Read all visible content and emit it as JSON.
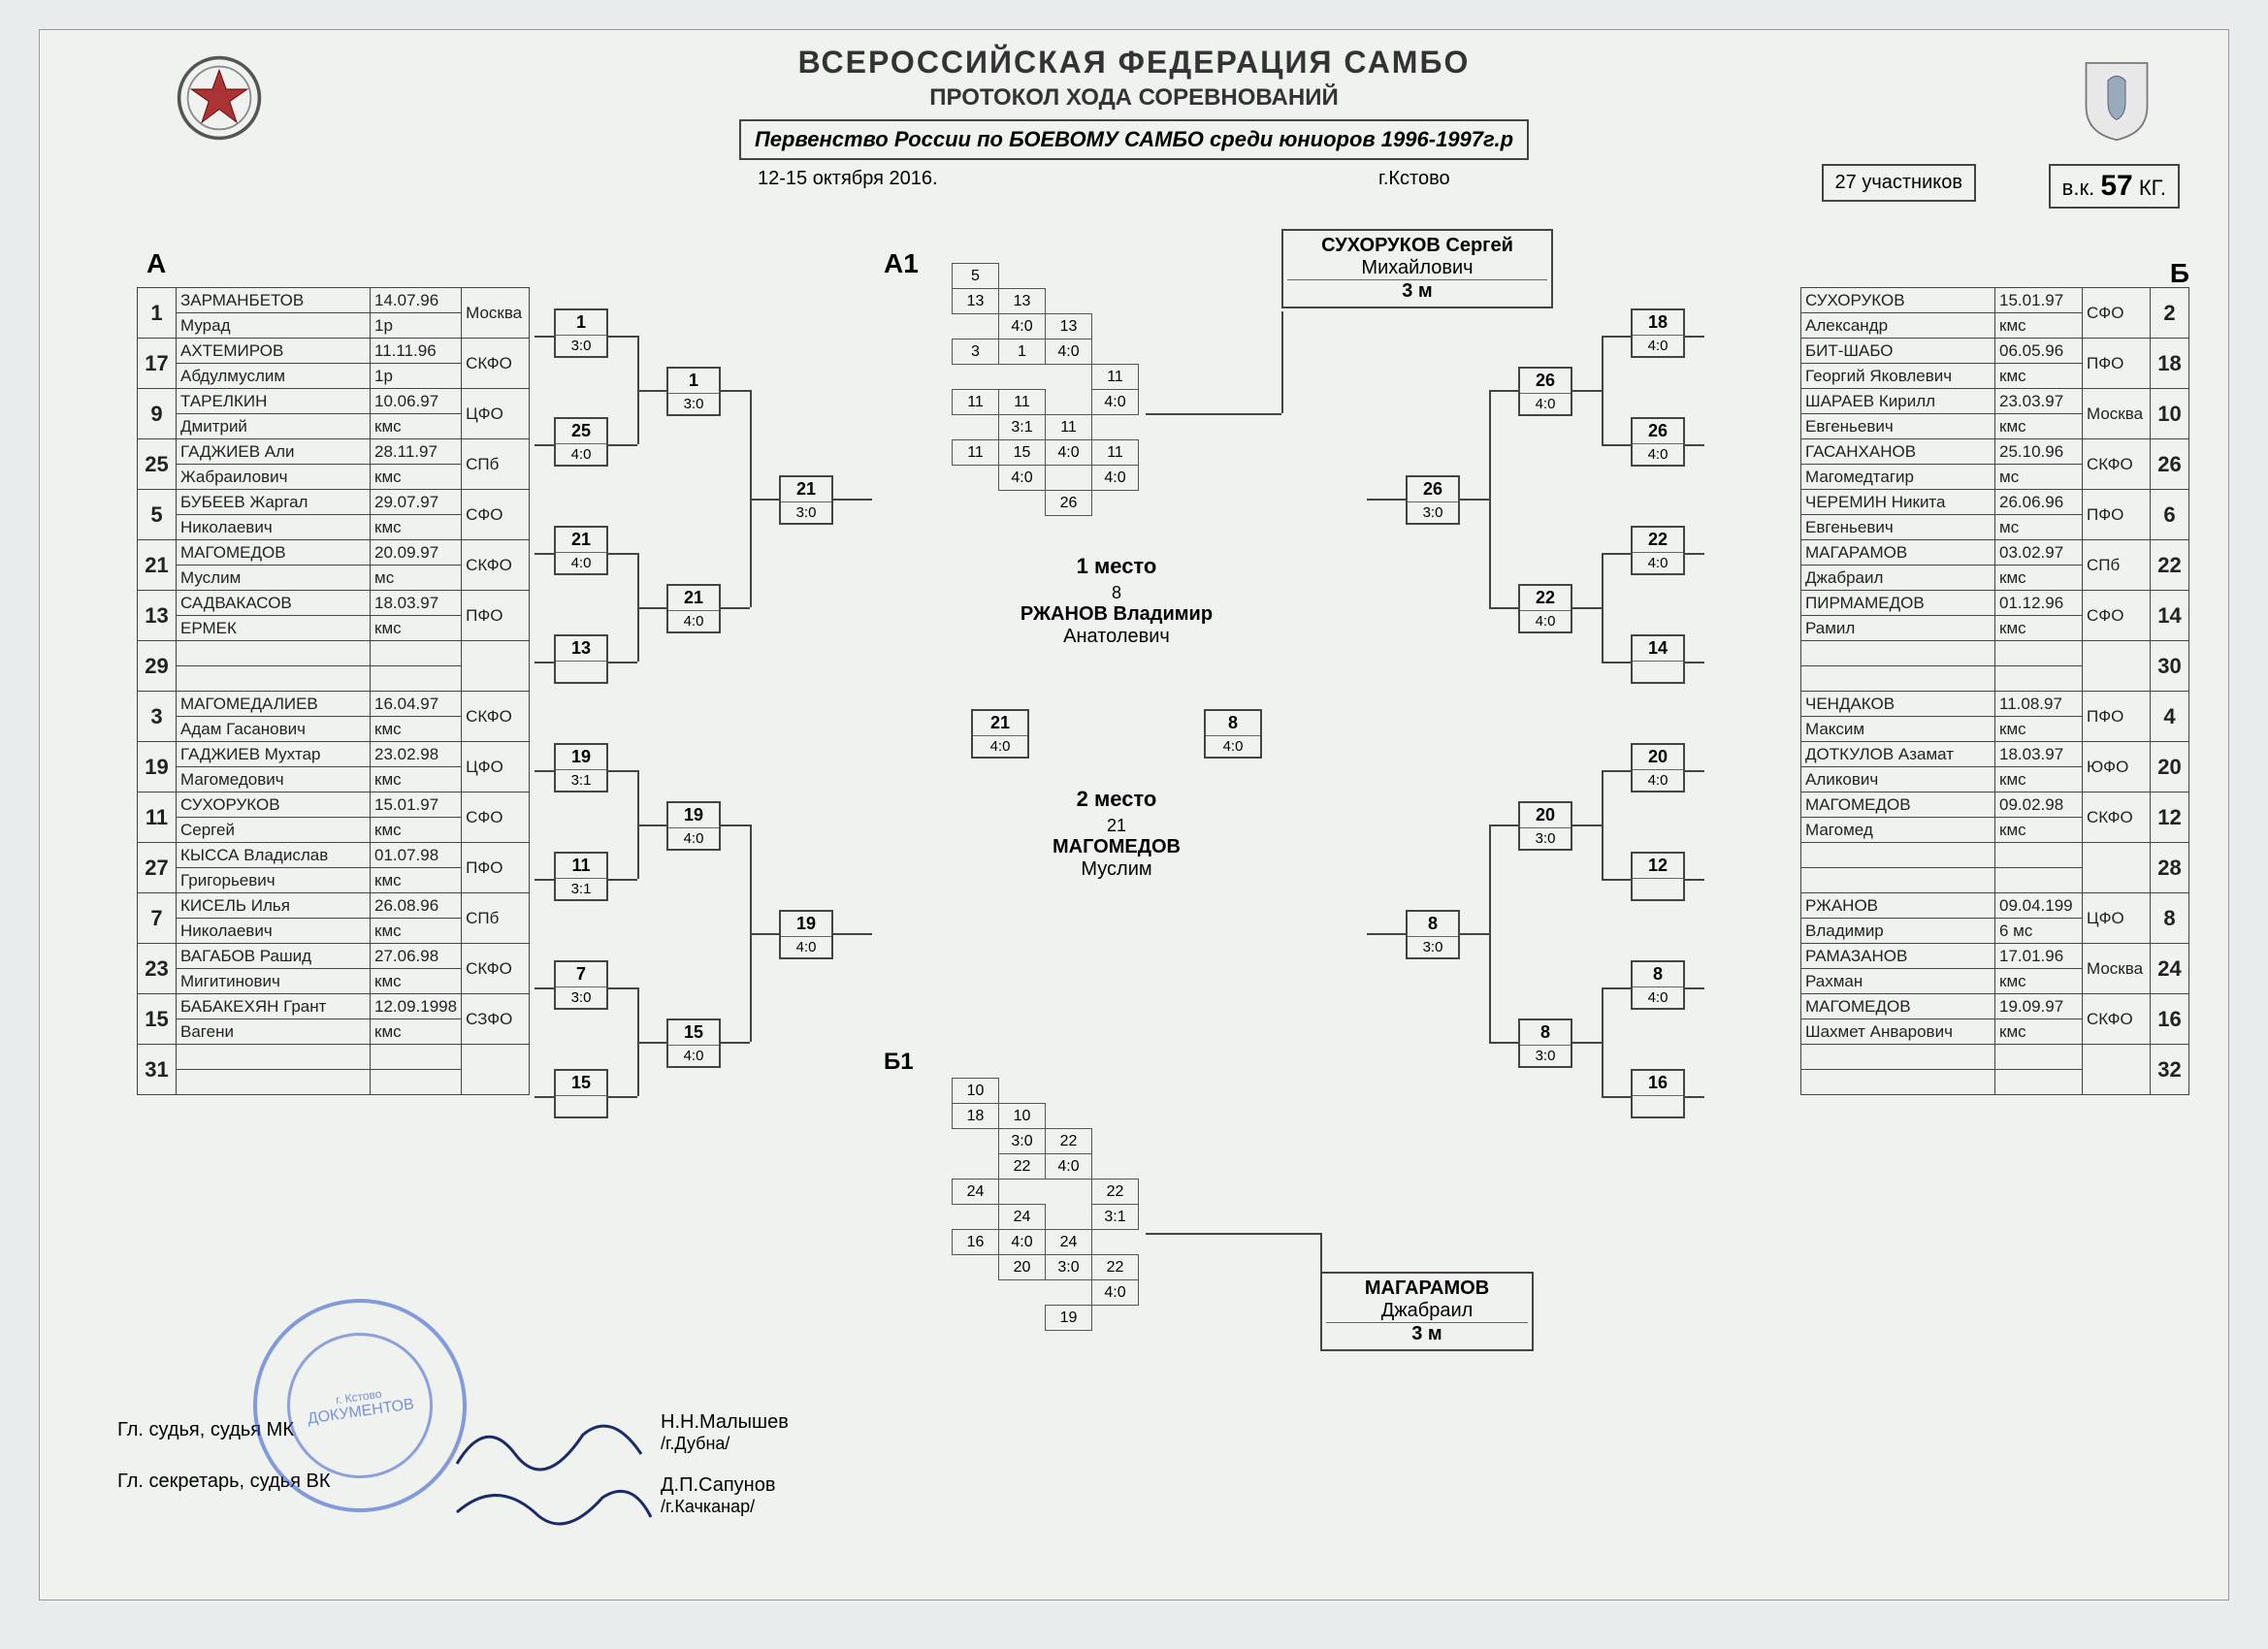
{
  "header": {
    "org": "ВСЕРОССИЙСКАЯ ФЕДЕРАЦИЯ САМБО",
    "title": "ПРОТОКОЛ ХОДА СОРЕВНОВАНИЙ",
    "event": "Первенство России по БОЕВОМУ САМБО среди юниоров 1996-1997г.р",
    "dates": "12-15 октября 2016.",
    "city": "г.Кстово",
    "participants_label": "27 участников",
    "weight_label": "в.к.",
    "weight_value": "57",
    "weight_unit": "КГ."
  },
  "labels": {
    "A": "А",
    "A1": "А1",
    "B": "Б",
    "B1": "Б1"
  },
  "groupA": [
    {
      "num": "1",
      "name1": "ЗАРМАНБЕТОВ",
      "name2": "Мурад",
      "d": "14.07.96",
      "r": "1р",
      "reg": "Москва"
    },
    {
      "num": "17",
      "name1": "АХТЕМИРОВ",
      "name2": "Абдулмуслим",
      "d": "11.11.96",
      "r": "1р",
      "reg": "СКФО"
    },
    {
      "num": "9",
      "name1": "ТАРЕЛКИН",
      "name2": "Дмитрий",
      "d": "10.06.97",
      "r": "кмс",
      "reg": "ЦФО"
    },
    {
      "num": "25",
      "name1": "ГАДЖИЕВ Али",
      "name2": "Жабраилович",
      "d": "28.11.97",
      "r": "кмс",
      "reg": "СПб"
    },
    {
      "num": "5",
      "name1": "БУБЕЕВ Жаргал",
      "name2": "Николаевич",
      "d": "29.07.97",
      "r": "кмс",
      "reg": "СФО"
    },
    {
      "num": "21",
      "name1": "МАГОМЕДОВ",
      "name2": "Муслим",
      "d": "20.09.97",
      "r": "мс",
      "reg": "СКФО"
    },
    {
      "num": "13",
      "name1": "САДВАКАСОВ",
      "name2": "ЕРМЕК",
      "d": "18.03.97",
      "r": "кмс",
      "reg": "ПФО"
    },
    {
      "num": "29",
      "name1": "",
      "name2": "",
      "d": "",
      "r": "",
      "reg": ""
    },
    {
      "num": "3",
      "name1": "МАГОМЕДАЛИЕВ",
      "name2": "Адам Гасанович",
      "d": "16.04.97",
      "r": "кмс",
      "reg": "СКФО"
    },
    {
      "num": "19",
      "name1": "ГАДЖИЕВ Мухтар",
      "name2": "Магомедович",
      "d": "23.02.98",
      "r": "кмс",
      "reg": "ЦФО"
    },
    {
      "num": "11",
      "name1": "СУХОРУКОВ",
      "name2": "Сергей",
      "d": "15.01.97",
      "r": "кмс",
      "reg": "СФО"
    },
    {
      "num": "27",
      "name1": "КЫССА Владислав",
      "name2": "Григорьевич",
      "d": "01.07.98",
      "r": "кмс",
      "reg": "ПФО"
    },
    {
      "num": "7",
      "name1": "КИСЕЛЬ Илья",
      "name2": "Николаевич",
      "d": "26.08.96",
      "r": "кмс",
      "reg": "СПб"
    },
    {
      "num": "23",
      "name1": "ВАГАБОВ Рашид",
      "name2": "Мигитинович",
      "d": "27.06.98",
      "r": "кмс",
      "reg": "СКФО"
    },
    {
      "num": "15",
      "name1": "БАБАКЕХЯН Грант",
      "name2": "Вагени",
      "d": "12.09.1998",
      "r": "кмс",
      "reg": "СЗФО"
    },
    {
      "num": "31",
      "name1": "",
      "name2": "",
      "d": "",
      "r": "",
      "reg": ""
    }
  ],
  "groupB": [
    {
      "num": "2",
      "name1": "СУХОРУКОВ",
      "name2": "Александр",
      "d": "15.01.97",
      "r": "кмс",
      "reg": "СФО"
    },
    {
      "num": "18",
      "name1": "БИТ-ШАБО",
      "name2": "Георгий Яковлевич",
      "d": "06.05.96",
      "r": "кмс",
      "reg": "ПФО"
    },
    {
      "num": "10",
      "name1": "ШАРАЕВ Кирилл",
      "name2": "Евгеньевич",
      "d": "23.03.97",
      "r": "кмс",
      "reg": "Москва"
    },
    {
      "num": "26",
      "name1": "ГАСАНХАНОВ",
      "name2": "Магомедтагир",
      "d": "25.10.96",
      "r": "мс",
      "reg": "СКФО"
    },
    {
      "num": "6",
      "name1": "ЧЕРЕМИН Никита",
      "name2": "Евгеньевич",
      "d": "26.06.96",
      "r": "мс",
      "reg": "ПФО"
    },
    {
      "num": "22",
      "name1": "МАГАРАМОВ",
      "name2": "Джабраил",
      "d": "03.02.97",
      "r": "кмс",
      "reg": "СПб"
    },
    {
      "num": "14",
      "name1": "ПИРМАМЕДОВ",
      "name2": "Рамил",
      "d": "01.12.96",
      "r": "кмс",
      "reg": "СФО"
    },
    {
      "num": "30",
      "name1": "",
      "name2": "",
      "d": "",
      "r": "",
      "reg": ""
    },
    {
      "num": "4",
      "name1": "ЧЕНДАКОВ",
      "name2": "Максим",
      "d": "11.08.97",
      "r": "кмс",
      "reg": "ПФО"
    },
    {
      "num": "20",
      "name1": "ДОТКУЛОВ Азамат",
      "name2": "Аликович",
      "d": "18.03.97",
      "r": "кмс",
      "reg": "ЮФО"
    },
    {
      "num": "12",
      "name1": "МАГОМЕДОВ",
      "name2": "Магомед",
      "d": "09.02.98",
      "r": "кмс",
      "reg": "СКФО"
    },
    {
      "num": "28",
      "name1": "",
      "name2": "",
      "d": "",
      "r": "",
      "reg": ""
    },
    {
      "num": "8",
      "name1": "РЖАНОВ",
      "name2": "Владимир",
      "d": "09.04.199",
      "r": "6 мс",
      "reg": "ЦФО"
    },
    {
      "num": "24",
      "name1": "РАМАЗАНОВ",
      "name2": "Рахман",
      "d": "17.01.96",
      "r": "кмс",
      "reg": "Москва"
    },
    {
      "num": "16",
      "name1": "МАГОМЕДОВ",
      "name2": "Шахмет Анварович",
      "d": "19.09.97",
      "r": "кмс",
      "reg": "СКФО"
    },
    {
      "num": "32",
      "name1": "",
      "name2": "",
      "d": "",
      "r": "",
      "reg": ""
    }
  ],
  "bracketA_r1": [
    {
      "w": "1",
      "s": "3:0"
    },
    {
      "w": "25",
      "s": "4:0"
    },
    {
      "w": "21",
      "s": "4:0"
    },
    {
      "w": "13",
      "s": ""
    },
    {
      "w": "19",
      "s": "3:1"
    },
    {
      "w": "11",
      "s": "3:1"
    },
    {
      "w": "7",
      "s": "3:0"
    },
    {
      "w": "15",
      "s": ""
    }
  ],
  "bracketA_r2": [
    {
      "w": "1",
      "s": "3:0"
    },
    {
      "w": "21",
      "s": "4:0"
    },
    {
      "w": "19",
      "s": "4:0"
    },
    {
      "w": "15",
      "s": "4:0"
    }
  ],
  "bracketA_r3": [
    {
      "w": "21",
      "s": "3:0"
    },
    {
      "w": "19",
      "s": "4:0"
    }
  ],
  "bracketB_r1": [
    {
      "w": "18",
      "s": "4:0"
    },
    {
      "w": "26",
      "s": "4:0"
    },
    {
      "w": "22",
      "s": "4:0"
    },
    {
      "w": "14",
      "s": ""
    },
    {
      "w": "20",
      "s": "4:0"
    },
    {
      "w": "12",
      "s": ""
    },
    {
      "w": "8",
      "s": "4:0"
    },
    {
      "w": "16",
      "s": ""
    }
  ],
  "bracketB_r2": [
    {
      "w": "26",
      "s": "4:0"
    },
    {
      "w": "22",
      "s": "4:0"
    },
    {
      "w": "20",
      "s": "3:0"
    },
    {
      "w": "8",
      "s": "3:0"
    }
  ],
  "bracketB_r3": [
    {
      "w": "26",
      "s": "3:0"
    },
    {
      "w": "8",
      "s": "3:0"
    }
  ],
  "semis": [
    {
      "w": "21",
      "s": "4:0"
    },
    {
      "w": "8",
      "s": "4:0"
    }
  ],
  "final_num": "8",
  "center": {
    "place1_label": "1 место",
    "place1_name1": "РЖАНОВ Владимир",
    "place1_name2": "Анатолевич",
    "place2_label": "2 место",
    "place2_num": "21",
    "place2_name1": "МАГОМЕДОВ",
    "place2_name2": "Муслим"
  },
  "third_a": {
    "name1": "СУХОРУКОВ Сергей",
    "name2": "Михайлович",
    "lbl": "3 м"
  },
  "third_b": {
    "name1": "МАГАРАМОВ",
    "name2": "Джабраил",
    "lbl": "3 м"
  },
  "a1_table": {
    "r": [
      [
        "5",
        "",
        "",
        ""
      ],
      [
        "13",
        "13",
        "",
        ""
      ],
      [
        "",
        "4:0",
        "13",
        ""
      ],
      [
        "3",
        "1",
        "4:0",
        ""
      ],
      [
        "",
        "",
        "",
        "11"
      ],
      [
        "11",
        "11",
        "",
        "4:0"
      ],
      [
        "",
        "3:1",
        "11",
        ""
      ],
      [
        "11",
        "15",
        "4:0",
        "11"
      ],
      [
        "",
        "4:0",
        "",
        "4:0"
      ],
      [
        "",
        "",
        "26",
        ""
      ]
    ]
  },
  "b1_table": {
    "r": [
      [
        "10",
        "",
        "",
        ""
      ],
      [
        "18",
        "10",
        "",
        ""
      ],
      [
        "",
        "3:0",
        "22",
        ""
      ],
      [
        "",
        "22",
        "4:0",
        ""
      ],
      [
        "24",
        "",
        "",
        "22"
      ],
      [
        "",
        "24",
        "",
        "3:1"
      ],
      [
        "16",
        "4:0",
        "24",
        ""
      ],
      [
        "",
        "20",
        "3:0",
        "22"
      ],
      [
        "",
        "",
        "",
        "4:0"
      ],
      [
        "",
        "",
        "19",
        ""
      ]
    ]
  },
  "footer": {
    "j1_label": "Гл. судья, судья МК",
    "j1_name": "Н.Н.Малышев",
    "j1_city": "/г.Дубна/",
    "j2_label": "Гл. секретарь, судья ВК",
    "j2_name": "Д.П.Сапунов",
    "j2_city": "/г.Качканар/"
  },
  "stamp_text": "ДОКУМЕНТОВ",
  "stamp_city": "г. Кстово"
}
